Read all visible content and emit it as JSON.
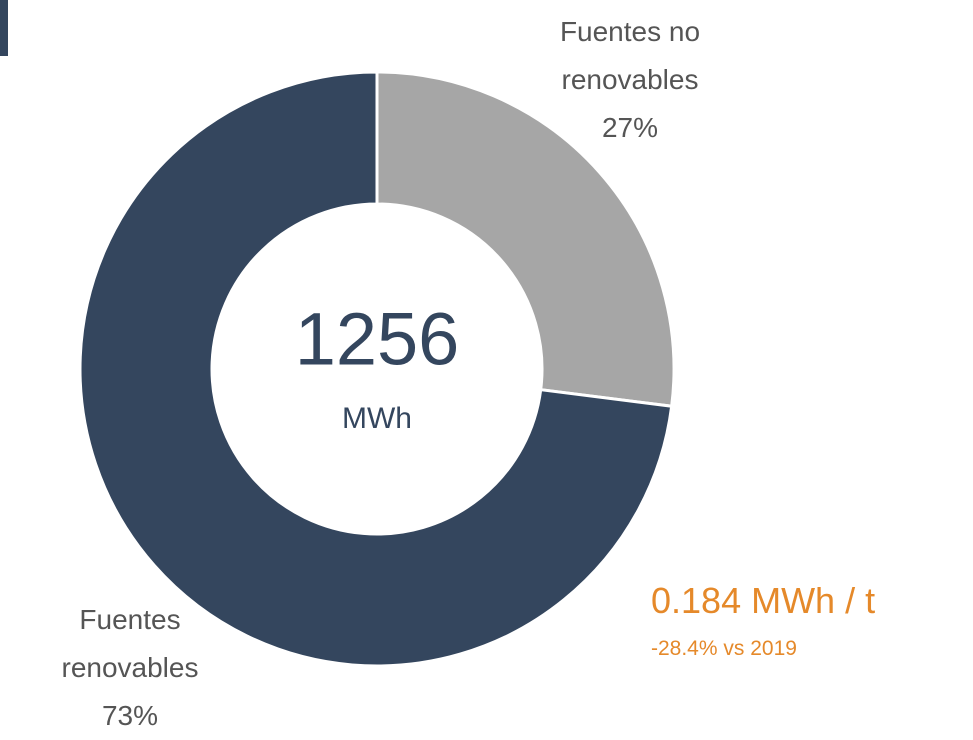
{
  "chart_data": {
    "type": "pie",
    "donut": true,
    "categories": [
      "Fuentes no renovables",
      "Fuentes renovables"
    ],
    "values": [
      27,
      73
    ],
    "value_labels": [
      "27%",
      "73%"
    ],
    "colors": [
      "#a6a6a6",
      "#34465e"
    ],
    "center_value": 1256,
    "center_unit": "MWh",
    "annotations": [
      "0.184 MWh / t",
      "-28.4% vs 2019"
    ]
  }
}
